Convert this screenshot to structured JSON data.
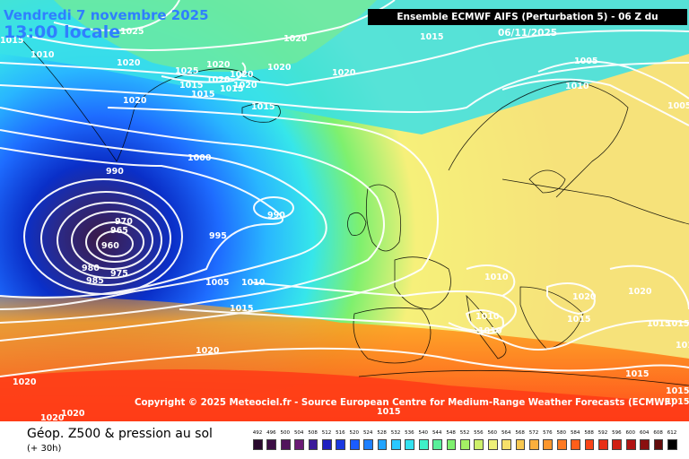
{
  "map": {
    "date_label": "Vendredi 7 novembre 2025",
    "time_label": "13:00 locale",
    "model_label": "Ensemble ECMWF AIFS  (Perturbation 5)  -  06 Z du 06/11/2025",
    "copyright": "Copyright © 2025 Meteociel.fr - Source European Centre for Medium-Range Weather Forecasts (ECMWF)",
    "isobar_labels": [
      "1015",
      "1025",
      "1010",
      "1020",
      "1020",
      "1020",
      "1020",
      "1015",
      "1015",
      "1020",
      "1020",
      "1015",
      "1005",
      "1010",
      "1005",
      "1020",
      "1015",
      "1025",
      "1020",
      "1020",
      "1015",
      "1000",
      "990",
      "990",
      "970",
      "965",
      "960",
      "975",
      "980",
      "985",
      "995",
      "1005",
      "1010",
      "1015",
      "1020",
      "1020",
      "1020",
      "1020",
      "1010",
      "1010",
      "1010",
      "1020",
      "1020",
      "1015",
      "1015",
      "1015",
      "1010",
      "1015",
      "1015",
      "1015",
      "1015"
    ],
    "colors": {
      "low_core": "#3a1a4a",
      "deep_blue": "#0a2fc8",
      "blue": "#1e6cff",
      "light_blue": "#29b6ff",
      "cyan": "#36e6ea",
      "green": "#7ef06e",
      "yellow": "#f6f07a",
      "orange": "#ff9a1e",
      "red": "#ff4a1a"
    }
  },
  "footer": {
    "field_title": "Géop. Z500 & pression au sol",
    "lead_time": "(+ 30h)",
    "scale_labels": [
      "492",
      "496",
      "500",
      "504",
      "508",
      "512",
      "516",
      "520",
      "524",
      "528",
      "532",
      "536",
      "540",
      "544",
      "548",
      "552",
      "556",
      "560",
      "564",
      "568",
      "572",
      "576",
      "580",
      "584",
      "588",
      "592",
      "596",
      "600",
      "604",
      "608",
      "612"
    ],
    "scale_colors": [
      "#2a0a2e",
      "#3d0f45",
      "#52145c",
      "#6a1a74",
      "#3a1a9a",
      "#2020c0",
      "#1a38e0",
      "#1a5cff",
      "#1e80ff",
      "#22a4ff",
      "#2ac8ff",
      "#34e2f0",
      "#3ef0c8",
      "#58f09a",
      "#7ef06e",
      "#a4f064",
      "#cef06a",
      "#eef078",
      "#f6e06a",
      "#f8c850",
      "#fab03c",
      "#fc962c",
      "#fe7a22",
      "#ff5e1a",
      "#f84418",
      "#e83016",
      "#d02014",
      "#b01414",
      "#8a1010",
      "#640c0c",
      "#000000"
    ]
  }
}
